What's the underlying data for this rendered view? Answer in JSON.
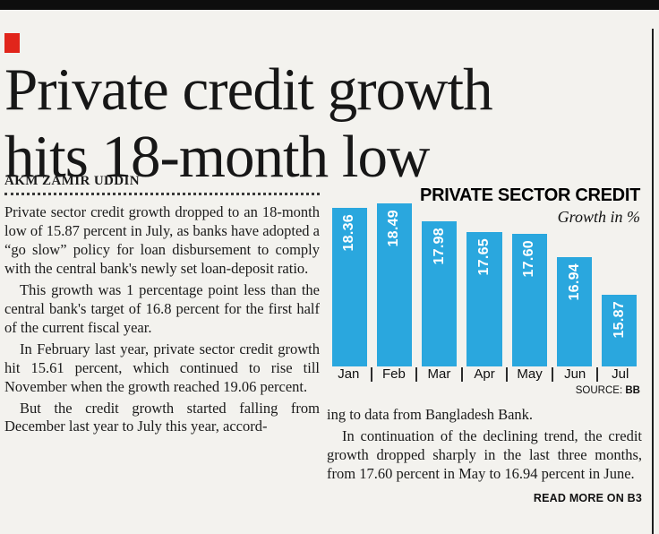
{
  "masthead": {
    "top_bar_color": "#0e0e0e",
    "red_mark_color": "#e1251b"
  },
  "headline_lines": [
    "Private credit growth",
    "hits 18-month low"
  ],
  "byline": "AKM ZAMIR UDDIN",
  "article": {
    "left_paragraphs": [
      "Private sector credit growth dropped to an 18-month low of 15.87 percent in July, as banks have adopted a “go slow” policy for loan disbursement to comply with the central bank's newly set loan-deposit ratio.",
      "This growth was 1 percentage point less than the central bank's target of 16.8 percent for the first half of the current fiscal year.",
      "In February last year, private sector credit growth hit 15.61 percent, which continued to rise till November when the growth reached 19.06 percent.",
      "But the credit growth started falling from December last year to July this year, accord-"
    ],
    "right_paragraphs": [
      "ing to data from Bangladesh Bank.",
      "In continuation of the declining trend, the credit growth dropped sharply in the last three months, from 17.60 percent in May to 16.94 percent in June."
    ],
    "read_more": "READ MORE ON B3"
  },
  "chart": {
    "title": "PRIVATE SECTOR CREDIT",
    "subtitle": "Growth in %",
    "source_label": "SOURCE:",
    "source_value": "BB",
    "bar_color": "#2aa7de"
  },
  "chart_data": {
    "type": "bar",
    "categories": [
      "Jan",
      "Feb",
      "Mar",
      "Apr",
      "May",
      "Jun",
      "Jul"
    ],
    "values": [
      18.36,
      18.49,
      17.98,
      17.65,
      17.6,
      16.94,
      15.87
    ],
    "title": "PRIVATE SECTOR CREDIT",
    "xlabel": "",
    "ylabel": "Growth in %",
    "ylim": [
      13.8,
      19.0
    ],
    "grid": false,
    "legend": "none",
    "value_labels": "inside-bar-rotated",
    "source": "BB"
  }
}
